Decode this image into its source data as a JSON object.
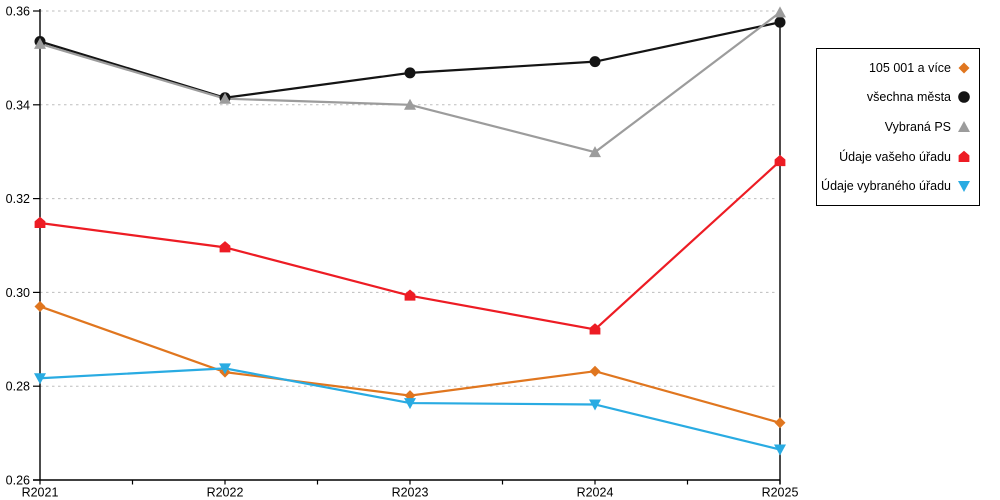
{
  "chart_data": {
    "type": "line",
    "title": "",
    "xlabel": "",
    "ylabel": "",
    "x_categories": [
      "R2021",
      "R2022",
      "R2023",
      "R2024",
      "R2025"
    ],
    "ylim": [
      0.26,
      0.36
    ],
    "ytick_labels": [
      "0.26",
      "0.28",
      "0.30",
      "0.32",
      "0.34",
      "0.36"
    ],
    "grid": "horizontal-dashed",
    "gridline_color": "#bdbdbd",
    "axis_color": "#000000",
    "legend_position": "right",
    "series": [
      {
        "name": "105 001 a více",
        "marker": "diamond",
        "color": "#E0761F",
        "values": [
          0.297,
          0.283,
          0.278,
          0.2832,
          0.2722
        ]
      },
      {
        "name": "všechna města",
        "marker": "circle",
        "color": "#141414",
        "values": [
          0.3535,
          0.3415,
          0.3468,
          0.3492,
          0.3576
        ]
      },
      {
        "name": "Vybraná PS",
        "marker": "triangle-up",
        "color": "#9C9C9C",
        "values": [
          0.353,
          0.3413,
          0.34,
          0.3299,
          0.3597
        ]
      },
      {
        "name": "Údaje vašeho úřadu",
        "marker": "pentagon",
        "color": "#ED1C24",
        "values": [
          0.3148,
          0.3096,
          0.2993,
          0.2921,
          0.328
        ]
      },
      {
        "name": "Údaje vybraného úřadu",
        "marker": "triangle-down",
        "color": "#29ABE2",
        "values": [
          0.2817,
          0.2838,
          0.2764,
          0.2761,
          0.2665
        ]
      }
    ]
  }
}
